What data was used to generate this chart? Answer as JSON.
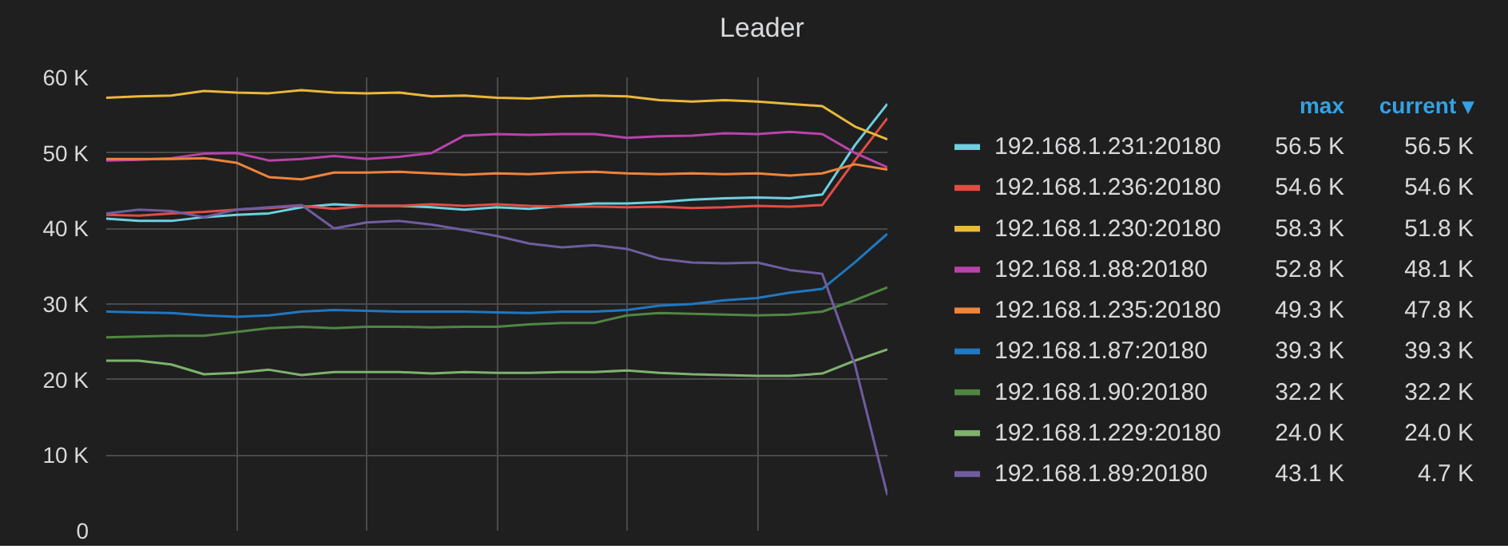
{
  "chart_data": {
    "type": "line",
    "title": "Leader",
    "categories": [
      null,
      null,
      null,
      null,
      null,
      null,
      null,
      null,
      null,
      null,
      null,
      null,
      null,
      null,
      null,
      null,
      null,
      null,
      null,
      null,
      null,
      null,
      null,
      null,
      null
    ],
    "series": [
      {
        "name": "192.168.1.231:20180",
        "color": "#6ed0e0",
        "values": [
          41.3,
          41.0,
          41.0,
          41.5,
          41.8,
          42.0,
          42.8,
          43.2,
          43.0,
          43.0,
          42.8,
          42.5,
          42.8,
          42.6,
          43.0,
          43.3,
          43.3,
          43.5,
          43.8,
          44.0,
          44.1,
          44.0,
          44.5,
          51.0,
          56.5
        ]
      },
      {
        "name": "192.168.1.236:20180",
        "color": "#e24d42",
        "values": [
          41.8,
          41.7,
          42.0,
          42.2,
          42.5,
          42.7,
          43.0,
          42.6,
          43.0,
          43.0,
          43.2,
          43.0,
          43.2,
          43.0,
          42.9,
          42.9,
          42.8,
          42.9,
          42.7,
          42.8,
          43.0,
          42.9,
          43.1,
          49.0,
          54.6
        ]
      },
      {
        "name": "192.168.1.230:20180",
        "color": "#eab839",
        "values": [
          57.3,
          57.5,
          57.6,
          58.2,
          58.0,
          57.9,
          58.3,
          58.0,
          57.9,
          58.0,
          57.5,
          57.6,
          57.3,
          57.2,
          57.5,
          57.6,
          57.5,
          57.0,
          56.8,
          57.0,
          56.8,
          56.5,
          56.2,
          53.5,
          51.8
        ]
      },
      {
        "name": "192.168.1.88:20180",
        "color": "#ba43a9",
        "values": [
          49.0,
          49.1,
          49.3,
          49.9,
          50.0,
          49.0,
          49.2,
          49.6,
          49.2,
          49.5,
          50.0,
          52.3,
          52.5,
          52.4,
          52.5,
          52.5,
          52.0,
          52.2,
          52.3,
          52.6,
          52.5,
          52.8,
          52.5,
          50.0,
          48.1
        ]
      },
      {
        "name": "192.168.1.235:20180",
        "color": "#ef843c",
        "values": [
          49.2,
          49.2,
          49.2,
          49.3,
          48.7,
          46.8,
          46.5,
          47.4,
          47.4,
          47.5,
          47.3,
          47.1,
          47.3,
          47.2,
          47.4,
          47.5,
          47.3,
          47.2,
          47.3,
          47.2,
          47.3,
          47.0,
          47.3,
          48.5,
          47.8
        ]
      },
      {
        "name": "192.168.1.87:20180",
        "color": "#1f78c1",
        "values": [
          29.0,
          28.9,
          28.8,
          28.5,
          28.3,
          28.5,
          29.0,
          29.2,
          29.1,
          29.0,
          29.0,
          29.0,
          28.9,
          28.8,
          29.0,
          29.0,
          29.2,
          29.8,
          30.0,
          30.5,
          30.8,
          31.5,
          32.0,
          35.5,
          39.3
        ]
      },
      {
        "name": "192.168.1.90:20180",
        "color": "#508642",
        "values": [
          25.6,
          25.7,
          25.8,
          25.8,
          26.3,
          26.8,
          27.0,
          26.8,
          27.0,
          27.0,
          26.9,
          27.0,
          27.0,
          27.3,
          27.5,
          27.5,
          28.5,
          28.8,
          28.7,
          28.6,
          28.5,
          28.6,
          29.0,
          30.5,
          32.2
        ]
      },
      {
        "name": "192.168.1.229:20180",
        "color": "#7eb26d",
        "values": [
          22.5,
          22.5,
          22.0,
          20.7,
          20.9,
          21.3,
          20.6,
          21.0,
          21.0,
          21.0,
          20.8,
          21.0,
          20.9,
          20.9,
          21.0,
          21.0,
          21.2,
          20.9,
          20.7,
          20.6,
          20.5,
          20.5,
          20.8,
          22.5,
          24.0
        ]
      },
      {
        "name": "192.168.1.89:20180",
        "color": "#705da0",
        "values": [
          42.0,
          42.5,
          42.3,
          41.5,
          42.5,
          42.8,
          43.1,
          40.0,
          40.8,
          41.0,
          40.5,
          39.8,
          39.0,
          38.0,
          37.5,
          37.8,
          37.3,
          36.0,
          35.5,
          35.4,
          35.5,
          34.5,
          34.0,
          22.0,
          4.7
        ]
      }
    ],
    "ylim": [
      0,
      60
    ],
    "yticks": [
      {
        "value": 0,
        "label": "0"
      },
      {
        "value": 10,
        "label": "10 K"
      },
      {
        "value": 20,
        "label": "20 K"
      },
      {
        "value": 30,
        "label": "30 K"
      },
      {
        "value": 40,
        "label": "40 K"
      },
      {
        "value": 50,
        "label": "50 K"
      },
      {
        "value": 60,
        "label": "60 K"
      }
    ],
    "grid": true,
    "legend": "right",
    "annotations": [
      "max",
      "current ▾",
      "56.5 K",
      "56.5 K",
      "54.6 K",
      "54.6 K",
      "58.3 K",
      "51.8 K",
      "52.8 K",
      "48.1 K",
      "49.3 K",
      "47.8 K",
      "39.3 K",
      "39.3 K",
      "32.2 K",
      "32.2 K",
      "24.0 K",
      "24.0 K",
      "43.1 K",
      "4.7 K"
    ]
  }
}
